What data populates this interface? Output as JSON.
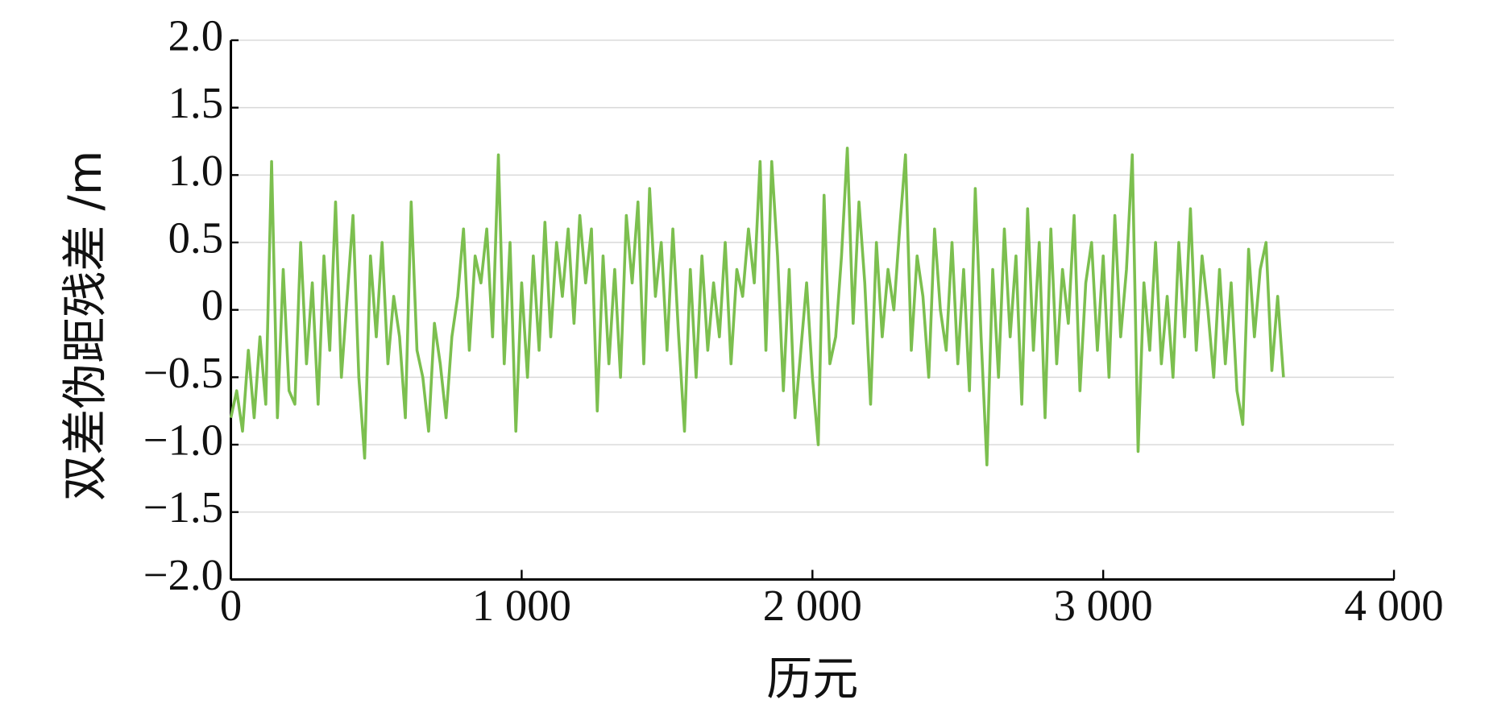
{
  "chart_data": {
    "type": "line",
    "xlabel": "历元",
    "ylabel": "双差伪距残差 /m",
    "xlim": [
      0,
      4000
    ],
    "xticks": [
      0,
      {
        "value": 1000,
        "label": "1 000"
      },
      {
        "value": 2000,
        "label": "2 000"
      },
      {
        "value": 3000,
        "label": "3 000"
      },
      {
        "value": 4000,
        "label": "4 000"
      }
    ],
    "ylim": [
      -2,
      2
    ],
    "yticks": [
      {
        "value": -2,
        "label": "−2.0"
      },
      {
        "value": -1.5,
        "label": "−1.5"
      },
      {
        "value": -1,
        "label": "−1.0"
      },
      {
        "value": -0.5,
        "label": "−0.5"
      },
      0,
      0.5,
      {
        "value": 1,
        "label": "1.0"
      },
      1.5,
      {
        "value": 2,
        "label": "2.0"
      }
    ],
    "grid": true,
    "series": [
      {
        "color": "#7cbf4f",
        "x": [
          0,
          20,
          40,
          60,
          80,
          100,
          120,
          140,
          160,
          180,
          200,
          220,
          240,
          260,
          280,
          300,
          320,
          340,
          360,
          380,
          400,
          420,
          440,
          460,
          480,
          500,
          520,
          540,
          560,
          580,
          600,
          620,
          640,
          660,
          680,
          700,
          720,
          740,
          760,
          780,
          800,
          820,
          840,
          860,
          880,
          900,
          920,
          940,
          960,
          980,
          1000,
          1020,
          1040,
          1060,
          1080,
          1100,
          1120,
          1140,
          1160,
          1180,
          1200,
          1220,
          1240,
          1260,
          1280,
          1300,
          1320,
          1340,
          1360,
          1380,
          1400,
          1420,
          1440,
          1460,
          1480,
          1500,
          1520,
          1540,
          1560,
          1580,
          1600,
          1620,
          1640,
          1660,
          1680,
          1700,
          1720,
          1740,
          1760,
          1780,
          1800,
          1820,
          1840,
          1860,
          1880,
          1900,
          1920,
          1940,
          1960,
          1980,
          2000,
          2020,
          2040,
          2060,
          2080,
          2100,
          2120,
          2140,
          2160,
          2180,
          2200,
          2220,
          2240,
          2260,
          2280,
          2300,
          2320,
          2340,
          2360,
          2380,
          2400,
          2420,
          2440,
          2460,
          2480,
          2500,
          2520,
          2540,
          2560,
          2580,
          2600,
          2620,
          2640,
          2660,
          2680,
          2700,
          2720,
          2740,
          2760,
          2780,
          2800,
          2820,
          2840,
          2860,
          2880,
          2900,
          2920,
          2940,
          2960,
          2980,
          3000,
          3020,
          3040,
          3060,
          3080,
          3100,
          3120,
          3140,
          3160,
          3180,
          3200,
          3220,
          3240,
          3260,
          3280,
          3300,
          3320,
          3340,
          3360,
          3380,
          3400,
          3420,
          3440,
          3460,
          3480,
          3500,
          3520,
          3540,
          3560,
          3580,
          3600,
          3620
        ],
        "values": [
          -0.8,
          -0.6,
          -0.9,
          -0.3,
          -0.8,
          -0.2,
          -0.7,
          1.1,
          -0.8,
          0.3,
          -0.6,
          -0.7,
          0.5,
          -0.4,
          0.2,
          -0.7,
          0.4,
          -0.3,
          0.8,
          -0.5,
          0.1,
          0.7,
          -0.5,
          -1.1,
          0.4,
          -0.2,
          0.5,
          -0.4,
          0.1,
          -0.2,
          -0.8,
          0.8,
          -0.3,
          -0.5,
          -0.9,
          -0.1,
          -0.4,
          -0.8,
          -0.2,
          0.1,
          0.6,
          -0.3,
          0.4,
          0.2,
          0.6,
          -0.2,
          1.15,
          -0.4,
          0.5,
          -0.9,
          0.2,
          -0.5,
          0.4,
          -0.3,
          0.65,
          -0.2,
          0.5,
          0.1,
          0.6,
          -0.1,
          0.7,
          0.2,
          0.6,
          -0.75,
          0.4,
          -0.4,
          0.3,
          -0.5,
          0.7,
          0.2,
          0.8,
          -0.4,
          0.9,
          0.1,
          0.5,
          -0.3,
          0.6,
          -0.2,
          -0.9,
          0.3,
          -0.5,
          0.4,
          -0.3,
          0.2,
          -0.2,
          0.5,
          -0.4,
          0.3,
          0.1,
          0.6,
          0.2,
          1.1,
          -0.3,
          1.1,
          0.4,
          -0.6,
          0.3,
          -0.8,
          -0.3,
          0.2,
          -0.5,
          -1.0,
          0.85,
          -0.4,
          -0.2,
          0.4,
          1.2,
          -0.1,
          0.8,
          0.2,
          -0.7,
          0.5,
          -0.2,
          0.3,
          0.0,
          0.6,
          1.15,
          -0.3,
          0.4,
          0.1,
          -0.5,
          0.6,
          0.0,
          -0.3,
          0.5,
          -0.4,
          0.3,
          -0.6,
          0.9,
          -0.2,
          -1.15,
          0.3,
          -0.5,
          0.6,
          -0.2,
          0.4,
          -0.7,
          0.75,
          -0.3,
          0.5,
          -0.8,
          0.6,
          -0.4,
          0.3,
          -0.1,
          0.7,
          -0.6,
          0.2,
          0.5,
          -0.3,
          0.4,
          -0.5,
          0.7,
          -0.2,
          0.3,
          1.15,
          -1.05,
          0.2,
          -0.3,
          0.5,
          -0.4,
          0.1,
          -0.5,
          0.5,
          -0.2,
          0.75,
          -0.3,
          0.4,
          0.0,
          -0.5,
          0.3,
          -0.4,
          0.2,
          -0.6,
          -0.85,
          0.45,
          -0.2,
          0.3,
          0.5,
          -0.45,
          0.1,
          -0.5
        ]
      }
    ]
  }
}
